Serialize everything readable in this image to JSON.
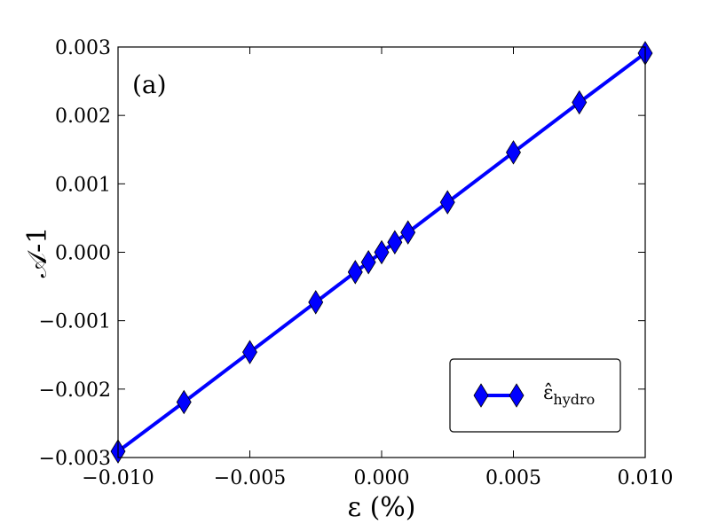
{
  "chart_data": {
    "type": "line",
    "panel_label": "(a)",
    "xlabel": "ε (%)",
    "ylabel": "𝒜-1",
    "xlim": [
      -0.01,
      0.01
    ],
    "ylim": [
      -0.003,
      0.003
    ],
    "x_ticks": [
      -0.01,
      -0.005,
      0.0,
      0.005,
      0.01
    ],
    "x_tick_labels": [
      "−0.010",
      "−0.005",
      "0.000",
      "0.005",
      "0.010"
    ],
    "y_ticks": [
      -0.003,
      -0.002,
      -0.001,
      0.0,
      0.001,
      0.002,
      0.003
    ],
    "y_tick_labels": [
      "−0.003",
      "−0.002",
      "−0.001",
      "0.000",
      "0.001",
      "0.002",
      "0.003"
    ],
    "grid": false,
    "legend_position": "lower-right",
    "series": [
      {
        "name": "ε̂hydro",
        "legend_main": "ε̂",
        "legend_sub": "hydro",
        "color": "#0000ff",
        "marker": "diamond",
        "x": [
          -0.01,
          -0.0075,
          -0.005,
          -0.0025,
          -0.001,
          -0.0005,
          0.0,
          0.0005,
          0.001,
          0.0025,
          0.005,
          0.0075,
          0.01
        ],
        "y": [
          -0.00291,
          -0.00219,
          -0.00146,
          -0.00073,
          -0.00029,
          -0.000146,
          0.0,
          0.000146,
          0.00029,
          0.00073,
          0.00146,
          0.00219,
          0.00291
        ]
      }
    ]
  }
}
